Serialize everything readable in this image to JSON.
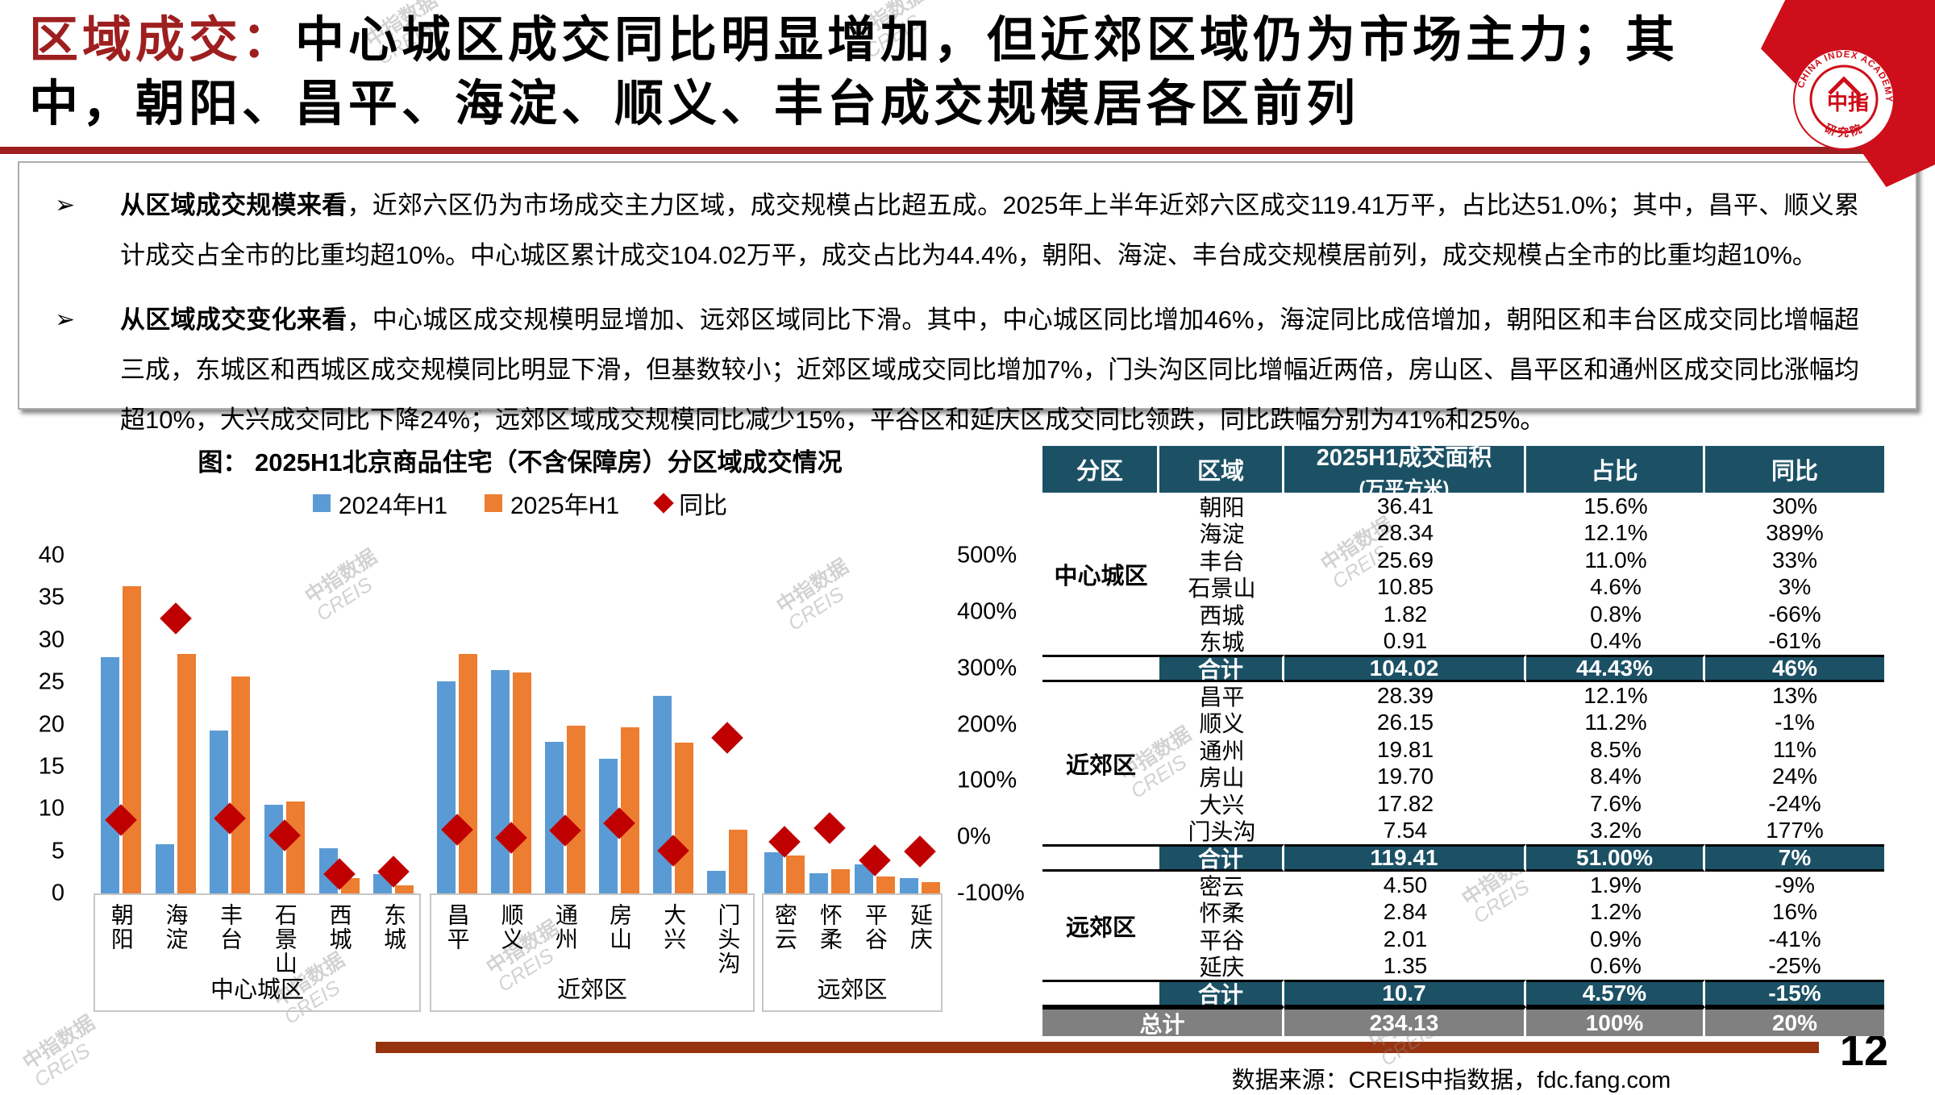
{
  "header": {
    "title_red": "区域成交：",
    "title_black_line1": "中心城区成交同比明显增加，但近郊区域仍为市场主力；其",
    "title_line2": "中，朝阳、昌平、海淀、顺义、丰台成交规模居各区前列"
  },
  "logo": {
    "arc_text": "CHINA INDEX ACADEMY",
    "center_text": "中指",
    "bottom_text": "研 究 院"
  },
  "bullets": [
    {
      "marker": "➢",
      "lead": "从区域成交规模来看",
      "text": "，近郊六区仍为市场成交主力区域，成交规模占比超五成。2025年上半年近郊六区成交119.41万平，占比达51.0%；其中，昌平、顺义累计成交占全市的比重均超10%。中心城区累计成交104.02万平，成交占比为44.4%，朝阳、海淀、丰台成交规模居前列，成交规模占全市的比重均超10%。"
    },
    {
      "marker": "➢",
      "lead": "从区域成交变化来看",
      "text": "，中心城区成交规模明显增加、远郊区域同比下滑。其中，中心城区同比增加46%，海淀同比成倍增加，朝阳区和丰台区成交同比增幅超三成，东城区和西城区成交规模同比明显下滑，但基数较小；近郊区域成交同比增加7%，门头沟区同比增幅近两倍，房山区、昌平区和通州区成交同比涨幅均超10%，大兴成交同比下降24%；远郊区域成交规模同比减少15%，平谷区和延庆区成交同比领跌，同比跌幅分别为41%和25%。"
    }
  ],
  "chart_data": {
    "type": "bar",
    "title": "图： 2025H1北京商品住宅（不含保障房）分区域成交情况",
    "legend": [
      {
        "label": "2024年H1",
        "color": "#5B9BD5",
        "shape": "square"
      },
      {
        "label": "2025年H1",
        "color": "#ED7D31",
        "shape": "square"
      },
      {
        "label": "同比",
        "color": "#C00000",
        "shape": "diamond"
      }
    ],
    "left_axis": {
      "ticks": [
        0,
        5,
        10,
        15,
        20,
        25,
        30,
        35,
        40
      ],
      "min": 0,
      "max": 40
    },
    "right_axis": {
      "labels": [
        "-100%",
        "0%",
        "100%",
        "200%",
        "300%",
        "400%",
        "500%"
      ],
      "values": [
        -100,
        0,
        100,
        200,
        300,
        400,
        500
      ],
      "min": -100,
      "max": 500
    },
    "series_names": [
      "2024年H1",
      "2025年H1",
      "同比"
    ],
    "groups": [
      {
        "name": "中心城区",
        "categories": [
          "朝阳",
          "海淀",
          "丰台",
          "石景山",
          "西城",
          "东城"
        ],
        "v2024": [
          28.0,
          5.8,
          19.3,
          10.5,
          5.3,
          2.3
        ],
        "v2025": [
          36.41,
          28.34,
          25.69,
          10.85,
          1.82,
          0.91
        ],
        "yoy_pct": [
          30,
          389,
          33,
          3,
          -66,
          -61
        ]
      },
      {
        "name": "近郊区",
        "categories": [
          "昌平",
          "顺义",
          "通州",
          "房山",
          "大兴",
          "门头沟"
        ],
        "v2024": [
          25.1,
          26.4,
          17.9,
          15.9,
          23.4,
          2.7
        ],
        "v2025": [
          28.39,
          26.15,
          19.81,
          19.7,
          17.82,
          7.54
        ],
        "yoy_pct": [
          13,
          -1,
          11,
          24,
          -24,
          177
        ]
      },
      {
        "name": "远郊区",
        "categories": [
          "密云",
          "怀柔",
          "平谷",
          "延庆"
        ],
        "v2024": [
          4.9,
          2.4,
          3.4,
          1.8
        ],
        "v2025": [
          4.5,
          2.84,
          2.01,
          1.35
        ],
        "yoy_pct": [
          -9,
          16,
          -41,
          -25
        ]
      }
    ],
    "colors": {
      "bar2024": "#5B9BD5",
      "bar2025": "#ED7D31",
      "diamond": "#C00000"
    }
  },
  "table": {
    "headers": [
      "分区",
      "区域",
      "2025H1成交面积",
      "(万平方米)",
      "占比",
      "同比"
    ],
    "groups": [
      {
        "name": "中心城区",
        "rows": [
          [
            "朝阳",
            "36.41",
            "15.6%",
            "30%"
          ],
          [
            "海淀",
            "28.34",
            "12.1%",
            "389%"
          ],
          [
            "丰台",
            "25.69",
            "11.0%",
            "33%"
          ],
          [
            "石景山",
            "10.85",
            "4.6%",
            "3%"
          ],
          [
            "西城",
            "1.82",
            "0.8%",
            "-66%"
          ],
          [
            "东城",
            "0.91",
            "0.4%",
            "-61%"
          ]
        ],
        "total": [
          "合计",
          "104.02",
          "44.43%",
          "46%"
        ]
      },
      {
        "name": "近郊区",
        "rows": [
          [
            "昌平",
            "28.39",
            "12.1%",
            "13%"
          ],
          [
            "顺义",
            "26.15",
            "11.2%",
            "-1%"
          ],
          [
            "通州",
            "19.81",
            "8.5%",
            "11%"
          ],
          [
            "房山",
            "19.70",
            "8.4%",
            "24%"
          ],
          [
            "大兴",
            "17.82",
            "7.6%",
            "-24%"
          ],
          [
            "门头沟",
            "7.54",
            "3.2%",
            "177%"
          ]
        ],
        "total": [
          "合计",
          "119.41",
          "51.00%",
          "7%"
        ]
      },
      {
        "name": "远郊区",
        "rows": [
          [
            "密云",
            "4.50",
            "1.9%",
            "-9%"
          ],
          [
            "怀柔",
            "2.84",
            "1.2%",
            "16%"
          ],
          [
            "平谷",
            "2.01",
            "0.9%",
            "-41%"
          ],
          [
            "延庆",
            "1.35",
            "0.6%",
            "-25%"
          ]
        ],
        "total": [
          "合计",
          "10.7",
          "4.57%",
          "-15%"
        ]
      }
    ],
    "grand_total": [
      "总计",
      "234.13",
      "100%",
      "20%"
    ]
  },
  "footer": {
    "source": "数据来源：CREIS中指数据，fdc.fang.com",
    "page_number": "12"
  },
  "watermark": {
    "line1": "中指数据",
    "line2": "CREIS"
  }
}
